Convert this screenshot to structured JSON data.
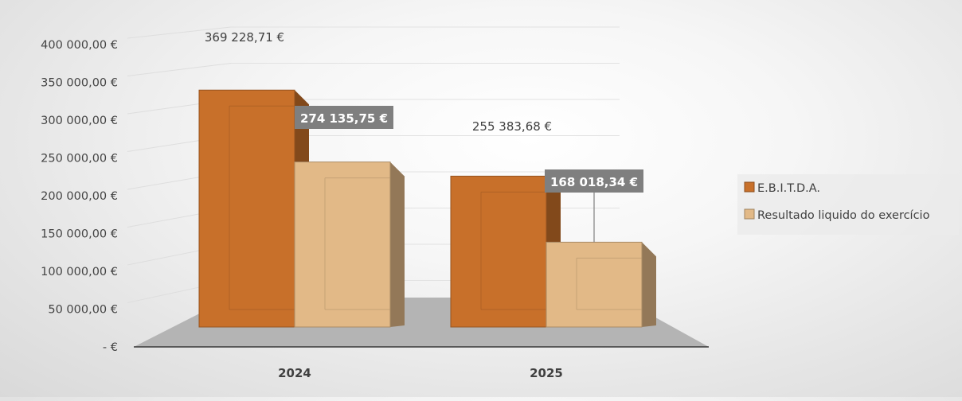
{
  "chart_data": {
    "type": "bar",
    "categories": [
      "2024",
      "2025"
    ],
    "series": [
      {
        "name": "E.B.I.T.D.A.",
        "values": [
          369228.71,
          255383.68
        ],
        "labels": [
          "369 228,71 €",
          "255 383,68 €"
        ],
        "color": "#c8702a"
      },
      {
        "name": "Resultado liquido do exercício",
        "values": [
          274135.75,
          168018.34
        ],
        "labels": [
          "274 135,75 €",
          "168 018,34 €"
        ],
        "color": "#e2b987"
      }
    ],
    "y_ticks": [
      0,
      50000,
      100000,
      150000,
      200000,
      250000,
      300000,
      350000,
      400000
    ],
    "y_tick_labels": [
      "-   €",
      "50 000,00 €",
      "100 000,00 €",
      "150 000,00 €",
      "200 000,00 €",
      "250 000,00 €",
      "300 000,00 €",
      "350 000,00 €",
      "400 000,00 €"
    ],
    "ylim": [
      0,
      400000
    ],
    "grid": true,
    "legend_position": "right",
    "style": "3d-clustered-column",
    "label_box_color": "#7f7f7f"
  }
}
